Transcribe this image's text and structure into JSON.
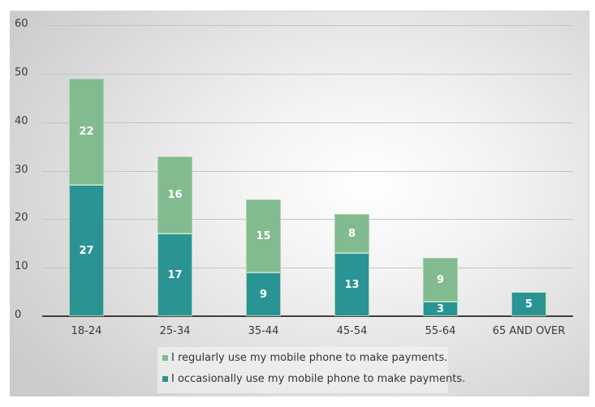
{
  "chart_data": {
    "type": "bar",
    "stacked": true,
    "title": "",
    "xlabel": "",
    "ylabel": "",
    "ylim": [
      0,
      60
    ],
    "yticks": [
      "0",
      "10",
      "20",
      "30",
      "40",
      "50",
      "60"
    ],
    "grid": true,
    "legend_position": "bottom",
    "categories": [
      "18-24",
      "25-34",
      "35-44",
      "45-54",
      "55-64",
      "65 AND OVER"
    ],
    "series": [
      {
        "name": "I occasionally use my mobile phone to make payments.",
        "color": "#2a9393",
        "values": [
          27,
          17,
          9,
          13,
          3,
          5
        ]
      },
      {
        "name": "I regularly use my mobile phone to make payments.",
        "color": "#82bb8f",
        "values": [
          22,
          16,
          15,
          8,
          9,
          0
        ]
      }
    ]
  },
  "legend": {
    "regular": "I regularly use my mobile phone to make payments.",
    "occasional": "I occasionally use my mobile phone to make payments."
  }
}
